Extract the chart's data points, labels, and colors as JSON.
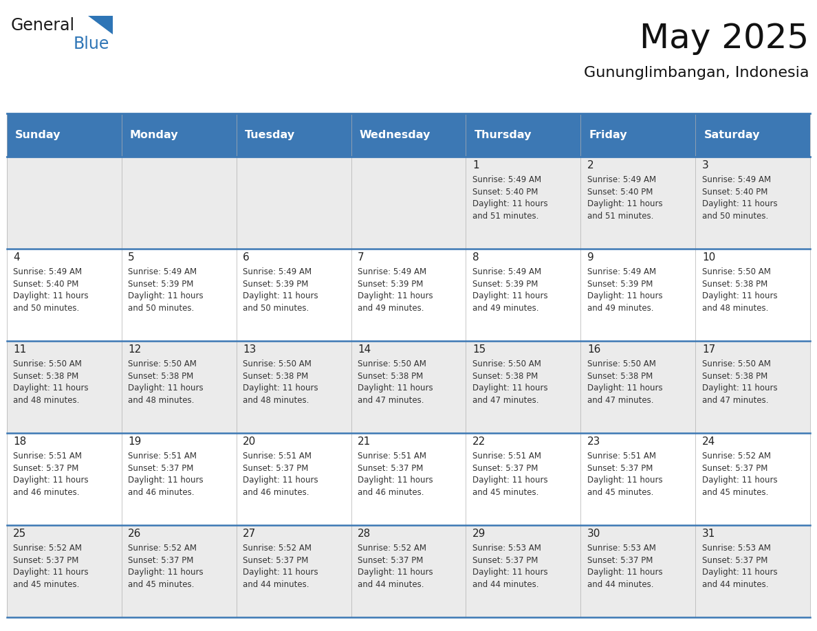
{
  "title": "May 2025",
  "subtitle": "Gununglimbangan, Indonesia",
  "days_of_week": [
    "Sunday",
    "Monday",
    "Tuesday",
    "Wednesday",
    "Thursday",
    "Friday",
    "Saturday"
  ],
  "header_bg": "#3c78b4",
  "header_text": "#FFFFFF",
  "row_bg": [
    "#EBEBEB",
    "#FFFFFF",
    "#EBEBEB",
    "#FFFFFF",
    "#EBEBEB"
  ],
  "border_color": "#3c78b4",
  "text_color": "#333333",
  "logo_general_color": "#222222",
  "logo_blue_color": "#2E75B6",
  "logo_tri_color": "#2E75B6",
  "calendar_data": [
    [
      {
        "day": null,
        "info": null
      },
      {
        "day": null,
        "info": null
      },
      {
        "day": null,
        "info": null
      },
      {
        "day": null,
        "info": null
      },
      {
        "day": 1,
        "info": "Sunrise: 5:49 AM\nSunset: 5:40 PM\nDaylight: 11 hours\nand 51 minutes."
      },
      {
        "day": 2,
        "info": "Sunrise: 5:49 AM\nSunset: 5:40 PM\nDaylight: 11 hours\nand 51 minutes."
      },
      {
        "day": 3,
        "info": "Sunrise: 5:49 AM\nSunset: 5:40 PM\nDaylight: 11 hours\nand 50 minutes."
      }
    ],
    [
      {
        "day": 4,
        "info": "Sunrise: 5:49 AM\nSunset: 5:40 PM\nDaylight: 11 hours\nand 50 minutes."
      },
      {
        "day": 5,
        "info": "Sunrise: 5:49 AM\nSunset: 5:39 PM\nDaylight: 11 hours\nand 50 minutes."
      },
      {
        "day": 6,
        "info": "Sunrise: 5:49 AM\nSunset: 5:39 PM\nDaylight: 11 hours\nand 50 minutes."
      },
      {
        "day": 7,
        "info": "Sunrise: 5:49 AM\nSunset: 5:39 PM\nDaylight: 11 hours\nand 49 minutes."
      },
      {
        "day": 8,
        "info": "Sunrise: 5:49 AM\nSunset: 5:39 PM\nDaylight: 11 hours\nand 49 minutes."
      },
      {
        "day": 9,
        "info": "Sunrise: 5:49 AM\nSunset: 5:39 PM\nDaylight: 11 hours\nand 49 minutes."
      },
      {
        "day": 10,
        "info": "Sunrise: 5:50 AM\nSunset: 5:38 PM\nDaylight: 11 hours\nand 48 minutes."
      }
    ],
    [
      {
        "day": 11,
        "info": "Sunrise: 5:50 AM\nSunset: 5:38 PM\nDaylight: 11 hours\nand 48 minutes."
      },
      {
        "day": 12,
        "info": "Sunrise: 5:50 AM\nSunset: 5:38 PM\nDaylight: 11 hours\nand 48 minutes."
      },
      {
        "day": 13,
        "info": "Sunrise: 5:50 AM\nSunset: 5:38 PM\nDaylight: 11 hours\nand 48 minutes."
      },
      {
        "day": 14,
        "info": "Sunrise: 5:50 AM\nSunset: 5:38 PM\nDaylight: 11 hours\nand 47 minutes."
      },
      {
        "day": 15,
        "info": "Sunrise: 5:50 AM\nSunset: 5:38 PM\nDaylight: 11 hours\nand 47 minutes."
      },
      {
        "day": 16,
        "info": "Sunrise: 5:50 AM\nSunset: 5:38 PM\nDaylight: 11 hours\nand 47 minutes."
      },
      {
        "day": 17,
        "info": "Sunrise: 5:50 AM\nSunset: 5:38 PM\nDaylight: 11 hours\nand 47 minutes."
      }
    ],
    [
      {
        "day": 18,
        "info": "Sunrise: 5:51 AM\nSunset: 5:37 PM\nDaylight: 11 hours\nand 46 minutes."
      },
      {
        "day": 19,
        "info": "Sunrise: 5:51 AM\nSunset: 5:37 PM\nDaylight: 11 hours\nand 46 minutes."
      },
      {
        "day": 20,
        "info": "Sunrise: 5:51 AM\nSunset: 5:37 PM\nDaylight: 11 hours\nand 46 minutes."
      },
      {
        "day": 21,
        "info": "Sunrise: 5:51 AM\nSunset: 5:37 PM\nDaylight: 11 hours\nand 46 minutes."
      },
      {
        "day": 22,
        "info": "Sunrise: 5:51 AM\nSunset: 5:37 PM\nDaylight: 11 hours\nand 45 minutes."
      },
      {
        "day": 23,
        "info": "Sunrise: 5:51 AM\nSunset: 5:37 PM\nDaylight: 11 hours\nand 45 minutes."
      },
      {
        "day": 24,
        "info": "Sunrise: 5:52 AM\nSunset: 5:37 PM\nDaylight: 11 hours\nand 45 minutes."
      }
    ],
    [
      {
        "day": 25,
        "info": "Sunrise: 5:52 AM\nSunset: 5:37 PM\nDaylight: 11 hours\nand 45 minutes."
      },
      {
        "day": 26,
        "info": "Sunrise: 5:52 AM\nSunset: 5:37 PM\nDaylight: 11 hours\nand 45 minutes."
      },
      {
        "day": 27,
        "info": "Sunrise: 5:52 AM\nSunset: 5:37 PM\nDaylight: 11 hours\nand 44 minutes."
      },
      {
        "day": 28,
        "info": "Sunrise: 5:52 AM\nSunset: 5:37 PM\nDaylight: 11 hours\nand 44 minutes."
      },
      {
        "day": 29,
        "info": "Sunrise: 5:53 AM\nSunset: 5:37 PM\nDaylight: 11 hours\nand 44 minutes."
      },
      {
        "day": 30,
        "info": "Sunrise: 5:53 AM\nSunset: 5:37 PM\nDaylight: 11 hours\nand 44 minutes."
      },
      {
        "day": 31,
        "info": "Sunrise: 5:53 AM\nSunset: 5:37 PM\nDaylight: 11 hours\nand 44 minutes."
      }
    ]
  ]
}
